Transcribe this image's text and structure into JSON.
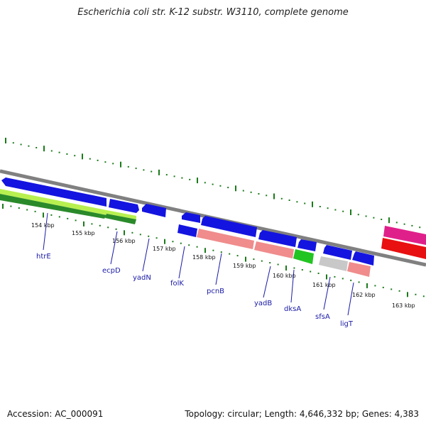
{
  "title": "Escherichia coli str. K-12 substr. W3110, complete genome",
  "footer": {
    "accession": "Accession: AC_000091",
    "summary": "Topology: circular; Length: 4,646,332 bp; Genes: 4,383"
  },
  "colors": {
    "backbone": "#808080",
    "tick": "#1a7a1a",
    "blue": "#1414e0",
    "salmon": "#f08c8c",
    "green_dark": "#2a8a2a",
    "green_light": "#b8f050",
    "green_bright": "#22c422",
    "gray": "#c8c8c8",
    "magenta": "#e0208a",
    "red": "#e81010",
    "label": "#1a1aa6"
  },
  "scale_labels": [
    "154 kbp",
    "155 kbp",
    "156 kbp",
    "157 kbp",
    "158 kbp",
    "159 kbp",
    "160 kbp",
    "161 kbp",
    "162 kbp",
    "163 kbp"
  ],
  "genes": [
    {
      "name": "htrE"
    },
    {
      "name": "ecpD"
    },
    {
      "name": "yadN"
    },
    {
      "name": "folK"
    },
    {
      "name": "pcnB"
    },
    {
      "name": "yadB"
    },
    {
      "name": "dksA"
    },
    {
      "name": "sfsA"
    },
    {
      "name": "ligT"
    }
  ]
}
